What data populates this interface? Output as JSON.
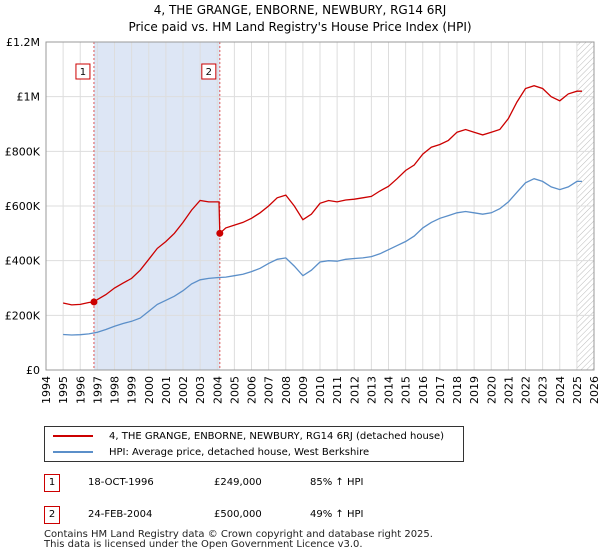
{
  "chart_data": {
    "type": "line",
    "title": "4, THE GRANGE, ENBORNE, NEWBURY, RG14 6RJ",
    "subtitle": "Price paid vs. HM Land Registry's House Price Index (HPI)",
    "xlim": [
      1994.0,
      2026.0
    ],
    "ylim": [
      0,
      1200000
    ],
    "x_ticks": [
      1994,
      1995,
      1996,
      1997,
      1998,
      1999,
      2000,
      2001,
      2002,
      2003,
      2004,
      2005,
      2006,
      2007,
      2008,
      2009,
      2010,
      2011,
      2012,
      2013,
      2014,
      2015,
      2016,
      2017,
      2018,
      2019,
      2020,
      2021,
      2022,
      2023,
      2024,
      2025,
      2026
    ],
    "y_ticks": [
      0,
      200000,
      400000,
      600000,
      800000,
      1000000,
      1200000
    ],
    "y_tick_labels": [
      "£0",
      "£200K",
      "£400K",
      "£600K",
      "£800K",
      "£1M",
      "£1.2M"
    ],
    "ownership_period": [
      1996.8,
      2004.15
    ],
    "future_from": 2025.0,
    "series": [
      {
        "name": "4, THE GRANGE, ENBORNE, NEWBURY, RG14 6RJ (detached house)",
        "color": "#cc0000",
        "points": [
          [
            1995.0,
            245000
          ],
          [
            1995.5,
            238000
          ],
          [
            1996.0,
            240000
          ],
          [
            1996.5,
            247000
          ],
          [
            1996.8,
            249000
          ],
          [
            1997.0,
            258000
          ],
          [
            1997.5,
            276000
          ],
          [
            1998.0,
            300000
          ],
          [
            1998.5,
            318000
          ],
          [
            1999.0,
            335000
          ],
          [
            1999.5,
            365000
          ],
          [
            2000.0,
            405000
          ],
          [
            2000.5,
            445000
          ],
          [
            2001.0,
            470000
          ],
          [
            2001.5,
            500000
          ],
          [
            2002.0,
            540000
          ],
          [
            2002.5,
            585000
          ],
          [
            2003.0,
            620000
          ],
          [
            2003.5,
            615000
          ],
          [
            2004.1,
            615000
          ],
          [
            2004.15,
            500000
          ],
          [
            2004.5,
            520000
          ],
          [
            2005.0,
            530000
          ],
          [
            2005.5,
            540000
          ],
          [
            2006.0,
            555000
          ],
          [
            2006.5,
            575000
          ],
          [
            2007.0,
            600000
          ],
          [
            2007.5,
            630000
          ],
          [
            2008.0,
            640000
          ],
          [
            2008.5,
            600000
          ],
          [
            2009.0,
            550000
          ],
          [
            2009.5,
            570000
          ],
          [
            2010.0,
            610000
          ],
          [
            2010.5,
            620000
          ],
          [
            2011.0,
            615000
          ],
          [
            2011.5,
            622000
          ],
          [
            2012.0,
            625000
          ],
          [
            2012.5,
            630000
          ],
          [
            2013.0,
            635000
          ],
          [
            2013.5,
            655000
          ],
          [
            2014.0,
            672000
          ],
          [
            2014.5,
            700000
          ],
          [
            2015.0,
            730000
          ],
          [
            2015.5,
            750000
          ],
          [
            2016.0,
            790000
          ],
          [
            2016.5,
            815000
          ],
          [
            2017.0,
            825000
          ],
          [
            2017.5,
            840000
          ],
          [
            2018.0,
            870000
          ],
          [
            2018.5,
            880000
          ],
          [
            2019.0,
            870000
          ],
          [
            2019.5,
            860000
          ],
          [
            2020.0,
            870000
          ],
          [
            2020.5,
            880000
          ],
          [
            2021.0,
            920000
          ],
          [
            2021.5,
            980000
          ],
          [
            2022.0,
            1030000
          ],
          [
            2022.5,
            1040000
          ],
          [
            2023.0,
            1030000
          ],
          [
            2023.5,
            1000000
          ],
          [
            2024.0,
            985000
          ],
          [
            2024.5,
            1010000
          ],
          [
            2025.0,
            1020000
          ],
          [
            2025.3,
            1020000
          ]
        ]
      },
      {
        "name": "HPI: Average price, detached house, West Berkshire",
        "color": "#5b8fc9",
        "points": [
          [
            1995.0,
            130000
          ],
          [
            1995.5,
            128000
          ],
          [
            1996.0,
            129000
          ],
          [
            1996.5,
            132000
          ],
          [
            1997.0,
            138000
          ],
          [
            1997.5,
            148000
          ],
          [
            1998.0,
            160000
          ],
          [
            1998.5,
            170000
          ],
          [
            1999.0,
            178000
          ],
          [
            1999.5,
            190000
          ],
          [
            2000.0,
            215000
          ],
          [
            2000.5,
            240000
          ],
          [
            2001.0,
            255000
          ],
          [
            2001.5,
            270000
          ],
          [
            2002.0,
            290000
          ],
          [
            2002.5,
            315000
          ],
          [
            2003.0,
            330000
          ],
          [
            2003.5,
            335000
          ],
          [
            2004.0,
            338000
          ],
          [
            2004.5,
            340000
          ],
          [
            2005.0,
            345000
          ],
          [
            2005.5,
            350000
          ],
          [
            2006.0,
            360000
          ],
          [
            2006.5,
            372000
          ],
          [
            2007.0,
            390000
          ],
          [
            2007.5,
            405000
          ],
          [
            2008.0,
            410000
          ],
          [
            2008.5,
            380000
          ],
          [
            2009.0,
            345000
          ],
          [
            2009.5,
            365000
          ],
          [
            2010.0,
            395000
          ],
          [
            2010.5,
            400000
          ],
          [
            2011.0,
            398000
          ],
          [
            2011.5,
            405000
          ],
          [
            2012.0,
            408000
          ],
          [
            2012.5,
            410000
          ],
          [
            2013.0,
            415000
          ],
          [
            2013.5,
            425000
          ],
          [
            2014.0,
            440000
          ],
          [
            2014.5,
            455000
          ],
          [
            2015.0,
            470000
          ],
          [
            2015.5,
            490000
          ],
          [
            2016.0,
            520000
          ],
          [
            2016.5,
            540000
          ],
          [
            2017.0,
            555000
          ],
          [
            2017.5,
            565000
          ],
          [
            2018.0,
            575000
          ],
          [
            2018.5,
            580000
          ],
          [
            2019.0,
            575000
          ],
          [
            2019.5,
            570000
          ],
          [
            2020.0,
            575000
          ],
          [
            2020.5,
            590000
          ],
          [
            2021.0,
            615000
          ],
          [
            2021.5,
            650000
          ],
          [
            2022.0,
            685000
          ],
          [
            2022.5,
            700000
          ],
          [
            2023.0,
            690000
          ],
          [
            2023.5,
            670000
          ],
          [
            2024.0,
            660000
          ],
          [
            2024.5,
            670000
          ],
          [
            2025.0,
            690000
          ],
          [
            2025.3,
            690000
          ]
        ]
      }
    ],
    "sales": [
      {
        "label": "1",
        "x": 1996.8,
        "price": 249000
      },
      {
        "label": "2",
        "x": 2004.15,
        "price": 500000
      }
    ]
  },
  "legend": {
    "property": "4, THE GRANGE, ENBORNE, NEWBURY, RG14 6RJ (detached house)",
    "hpi": "HPI: Average price, detached house, West Berkshire"
  },
  "transactions": [
    {
      "label": "1",
      "date": "18-OCT-1996",
      "price": "£249,000",
      "hpi": "85% ↑ HPI"
    },
    {
      "label": "2",
      "date": "24-FEB-2004",
      "price": "£500,000",
      "hpi": "49% ↑ HPI"
    }
  ],
  "footer": {
    "line1": "Contains HM Land Registry data © Crown copyright and database right 2025.",
    "line2": "This data is licensed under the Open Government Licence v3.0."
  },
  "colors": {
    "property": "#cc0000",
    "hpi": "#5b8fc9",
    "grid": "#dddddd",
    "shade": "#dde6f5"
  }
}
